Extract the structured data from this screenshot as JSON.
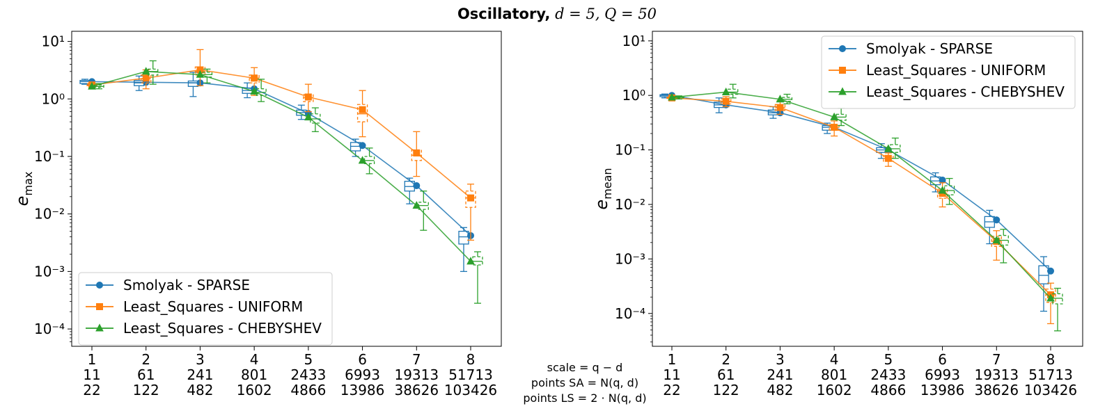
{
  "figure": {
    "title": "Oscillatory, d = 5, Q = 50",
    "title_parts": {
      "name": "Oscillatory,",
      "params": "d = 5, Q = 50"
    },
    "bottom_labels": [
      "scale = q − d",
      "points SA = N(q, d)",
      "points LS = 2 · N(q, d)"
    ]
  },
  "colors": {
    "smolyak": "#1f77b4",
    "uniform": "#ff7f0e",
    "chebyshev": "#2ca02c"
  },
  "chart_data": [
    {
      "type": "line",
      "ylabel": "e_max",
      "ylabel_main": "e",
      "ylabel_sub": "max",
      "yscale": "log",
      "ylim": [
        5e-05,
        15
      ],
      "yticks": [
        "10^-4",
        "10^-3",
        "10^-2",
        "10^-1",
        "10^0",
        "10^1"
      ],
      "x": [
        1,
        2,
        3,
        4,
        5,
        6,
        7,
        8
      ],
      "xtick_rows": [
        [
          "1",
          "2",
          "3",
          "4",
          "5",
          "6",
          "7",
          "8"
        ],
        [
          "11",
          "61",
          "241",
          "801",
          "2433",
          "6993",
          "19313",
          "51713"
        ],
        [
          "22",
          "122",
          "482",
          "1602",
          "4866",
          "13986",
          "38626",
          "103426"
        ]
      ],
      "legend_position": "lower-left",
      "series": [
        {
          "name": "Smolyak - SPARSE",
          "color_key": "smolyak",
          "marker": "circle",
          "values": [
            2.0,
            1.95,
            1.9,
            1.5,
            0.56,
            0.155,
            0.031,
            0.0042
          ],
          "boxes": [
            {
              "wlo": 1.8,
              "q1": 1.85,
              "med": 2.0,
              "q3": 2.1,
              "whi": 2.2
            },
            {
              "wlo": 1.4,
              "q1": 1.7,
              "med": 1.9,
              "q3": 2.1,
              "whi": 2.5
            },
            {
              "wlo": 1.1,
              "q1": 1.65,
              "med": 1.9,
              "q3": 2.05,
              "whi": 2.9
            },
            {
              "wlo": 1.05,
              "q1": 1.25,
              "med": 1.4,
              "q3": 1.55,
              "whi": 1.9
            },
            {
              "wlo": 0.44,
              "q1": 0.52,
              "med": 0.58,
              "q3": 0.64,
              "whi": 0.78
            },
            {
              "wlo": 0.1,
              "q1": 0.125,
              "med": 0.15,
              "q3": 0.175,
              "whi": 0.2
            },
            {
              "wlo": 0.015,
              "q1": 0.025,
              "med": 0.03,
              "q3": 0.037,
              "whi": 0.042
            },
            {
              "wlo": 0.001,
              "q1": 0.003,
              "med": 0.004,
              "q3": 0.005,
              "whi": 0.0058
            }
          ]
        },
        {
          "name": "Least_Squares - UNIFORM",
          "color_key": "uniform",
          "marker": "square",
          "values": [
            1.75,
            2.3,
            3.2,
            2.3,
            1.08,
            0.65,
            0.115,
            0.019
          ],
          "boxes": [
            {
              "wlo": 1.6,
              "q1": 1.7,
              "med": 1.75,
              "q3": 1.85,
              "whi": 1.9
            },
            {
              "wlo": 1.5,
              "q1": 1.9,
              "med": 2.25,
              "q3": 2.6,
              "whi": 3.2
            },
            {
              "wlo": 1.7,
              "q1": 2.6,
              "med": 3.0,
              "q3": 3.6,
              "whi": 7.2
            },
            {
              "wlo": 1.15,
              "q1": 1.9,
              "med": 2.3,
              "q3": 2.6,
              "whi": 3.5
            },
            {
              "wlo": 0.6,
              "q1": 0.9,
              "med": 1.05,
              "q3": 1.2,
              "whi": 1.8
            },
            {
              "wlo": 0.22,
              "q1": 0.4,
              "med": 0.55,
              "q3": 0.8,
              "whi": 1.4
            },
            {
              "wlo": 0.045,
              "q1": 0.085,
              "med": 0.105,
              "q3": 0.13,
              "whi": 0.27
            },
            {
              "wlo": 0.0035,
              "q1": 0.013,
              "med": 0.019,
              "q3": 0.025,
              "whi": 0.033
            }
          ]
        },
        {
          "name": "Least_Squares - CHEBYSHEV",
          "color_key": "chebyshev",
          "marker": "triangle",
          "values": [
            1.65,
            3.0,
            2.65,
            1.35,
            0.48,
            0.085,
            0.014,
            0.0015
          ],
          "boxes": [
            {
              "wlo": 1.5,
              "q1": 1.6,
              "med": 1.65,
              "q3": 1.75,
              "whi": 1.85
            },
            {
              "wlo": 1.8,
              "q1": 2.6,
              "med": 3.0,
              "q3": 3.3,
              "whi": 4.6
            },
            {
              "wlo": 1.9,
              "q1": 2.4,
              "med": 2.65,
              "q3": 2.9,
              "whi": 3.3
            },
            {
              "wlo": 0.9,
              "q1": 1.15,
              "med": 1.3,
              "q3": 1.5,
              "whi": 2.2
            },
            {
              "wlo": 0.27,
              "q1": 0.38,
              "med": 0.45,
              "q3": 0.55,
              "whi": 0.7
            },
            {
              "wlo": 0.05,
              "q1": 0.075,
              "med": 0.085,
              "q3": 0.1,
              "whi": 0.14
            },
            {
              "wlo": 0.0052,
              "q1": 0.012,
              "med": 0.014,
              "q3": 0.016,
              "whi": 0.025
            },
            {
              "wlo": 0.00028,
              "q1": 0.0013,
              "med": 0.0015,
              "q3": 0.0018,
              "whi": 0.0022
            }
          ]
        }
      ]
    },
    {
      "type": "line",
      "ylabel": "e_mean",
      "ylabel_main": "e",
      "ylabel_sub": "mean",
      "yscale": "log",
      "ylim": [
        2.5e-05,
        15
      ],
      "yticks": [
        "10^-4",
        "10^-3",
        "10^-2",
        "10^-1",
        "10^0",
        "10^1"
      ],
      "x": [
        1,
        2,
        3,
        4,
        5,
        6,
        7,
        8
      ],
      "xtick_rows": [
        [
          "1",
          "2",
          "3",
          "4",
          "5",
          "6",
          "7",
          "8"
        ],
        [
          "11",
          "61",
          "241",
          "801",
          "2433",
          "6993",
          "19313",
          "51713"
        ],
        [
          "22",
          "122",
          "482",
          "1602",
          "4866",
          "13986",
          "38626",
          "103426"
        ]
      ],
      "legend_position": "upper-right",
      "series": [
        {
          "name": "Smolyak - SPARSE",
          "color_key": "smolyak",
          "marker": "circle",
          "values": [
            1.0,
            0.67,
            0.48,
            0.26,
            0.1,
            0.028,
            0.0052,
            0.0006
          ],
          "boxes": [
            {
              "wlo": 0.9,
              "q1": 0.95,
              "med": 1.0,
              "q3": 1.03,
              "whi": 1.06
            },
            {
              "wlo": 0.48,
              "q1": 0.6,
              "med": 0.67,
              "q3": 0.75,
              "whi": 0.9
            },
            {
              "wlo": 0.38,
              "q1": 0.44,
              "med": 0.48,
              "q3": 0.54,
              "whi": 0.62
            },
            {
              "wlo": 0.2,
              "q1": 0.23,
              "med": 0.26,
              "q3": 0.28,
              "whi": 0.31
            },
            {
              "wlo": 0.07,
              "q1": 0.09,
              "med": 0.1,
              "q3": 0.11,
              "whi": 0.13
            },
            {
              "wlo": 0.017,
              "q1": 0.023,
              "med": 0.027,
              "q3": 0.032,
              "whi": 0.038
            },
            {
              "wlo": 0.0019,
              "q1": 0.0038,
              "med": 0.0048,
              "q3": 0.006,
              "whi": 0.0078
            },
            {
              "wlo": 0.00011,
              "q1": 0.00035,
              "med": 0.0005,
              "q3": 0.00075,
              "whi": 0.0011
            }
          ]
        },
        {
          "name": "Least_Squares - UNIFORM",
          "color_key": "uniform",
          "marker": "square",
          "values": [
            0.9,
            0.78,
            0.6,
            0.26,
            0.07,
            0.016,
            0.0021,
            0.00022
          ],
          "boxes": [
            {
              "wlo": 0.85,
              "q1": 0.88,
              "med": 0.9,
              "q3": 0.93,
              "whi": 0.96
            },
            {
              "wlo": 0.62,
              "q1": 0.7,
              "med": 0.78,
              "q3": 0.86,
              "whi": 0.95
            },
            {
              "wlo": 0.45,
              "q1": 0.53,
              "med": 0.6,
              "q3": 0.68,
              "whi": 0.8
            },
            {
              "wlo": 0.18,
              "q1": 0.23,
              "med": 0.26,
              "q3": 0.29,
              "whi": 0.34
            },
            {
              "wlo": 0.05,
              "q1": 0.062,
              "med": 0.07,
              "q3": 0.078,
              "whi": 0.088
            },
            {
              "wlo": 0.009,
              "q1": 0.013,
              "med": 0.016,
              "q3": 0.019,
              "whi": 0.025
            },
            {
              "wlo": 0.00095,
              "q1": 0.0017,
              "med": 0.0021,
              "q3": 0.0026,
              "whi": 0.0033
            },
            {
              "wlo": 6.5e-05,
              "q1": 0.00016,
              "med": 0.00022,
              "q3": 0.00028,
              "whi": 0.00036
            }
          ]
        },
        {
          "name": "Least_Squares - CHEBYSHEV",
          "color_key": "chebyshev",
          "marker": "triangle",
          "values": [
            0.92,
            1.15,
            0.85,
            0.4,
            0.105,
            0.018,
            0.0022,
            0.00019
          ],
          "boxes": [
            {
              "wlo": 0.86,
              "q1": 0.9,
              "med": 0.92,
              "q3": 0.95,
              "whi": 0.98
            },
            {
              "wlo": 0.9,
              "q1": 1.05,
              "med": 1.15,
              "q3": 1.3,
              "whi": 1.6
            },
            {
              "wlo": 0.7,
              "q1": 0.78,
              "med": 0.85,
              "q3": 0.92,
              "whi": 1.05
            },
            {
              "wlo": 0.28,
              "q1": 0.35,
              "med": 0.4,
              "q3": 0.45,
              "whi": 0.58
            },
            {
              "wlo": 0.07,
              "q1": 0.09,
              "med": 0.105,
              "q3": 0.125,
              "whi": 0.165
            },
            {
              "wlo": 0.01,
              "q1": 0.015,
              "med": 0.018,
              "q3": 0.022,
              "whi": 0.03
            },
            {
              "wlo": 0.00085,
              "q1": 0.0018,
              "med": 0.0022,
              "q3": 0.0027,
              "whi": 0.0035
            },
            {
              "wlo": 4.8e-05,
              "q1": 0.00015,
              "med": 0.00019,
              "q3": 0.00023,
              "whi": 0.00029
            }
          ]
        }
      ]
    }
  ]
}
